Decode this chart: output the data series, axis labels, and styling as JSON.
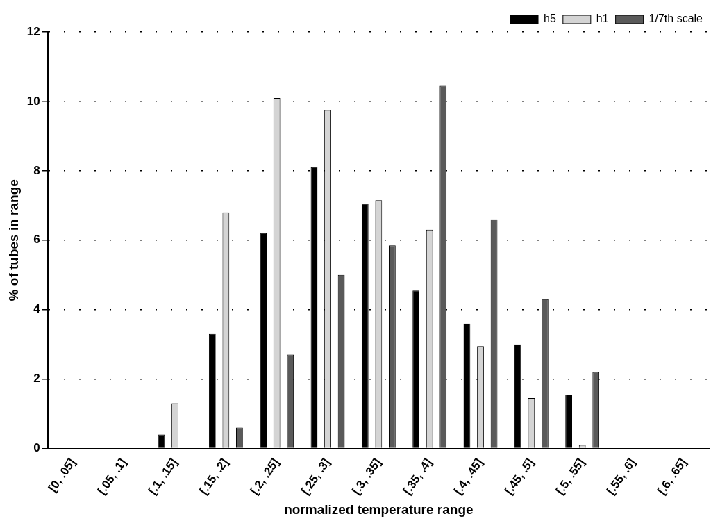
{
  "chart_data": {
    "type": "bar",
    "xlabel": "normalized temperature range",
    "ylabel": "% of tubes in range",
    "categories": [
      "[0, .05]",
      "[.05, .1]",
      "[.1, .15]",
      "[.15, .2]",
      "[.2, .25]",
      "[.25, .3]",
      "[.3, .35]",
      "[.35, .4]",
      "[.4, .45]",
      "[.45, .5]",
      "[.5, .55]",
      "[.55, .6]",
      "[.6, .65]"
    ],
    "series": [
      {
        "name": "h5",
        "color": "#000000",
        "values": [
          0,
          0,
          0.4,
          3.3,
          6.2,
          8.1,
          7.05,
          4.55,
          3.6,
          3.0,
          1.55,
          0,
          0
        ]
      },
      {
        "name": "h1",
        "color": "#d4d4d4",
        "values": [
          0,
          0,
          1.3,
          6.8,
          10.1,
          9.75,
          7.15,
          6.3,
          2.95,
          1.45,
          0.1,
          0,
          0
        ]
      },
      {
        "name": "1/7th scale",
        "color": "#5a5a5a",
        "values": [
          0,
          0,
          0,
          0.6,
          2.7,
          5.0,
          5.85,
          10.45,
          6.6,
          4.3,
          2.2,
          0,
          0
        ]
      }
    ],
    "ylim": [
      0,
      12
    ],
    "yticks": [
      0,
      2,
      4,
      6,
      8,
      10,
      12
    ],
    "grid": "y",
    "legend": "top right"
  }
}
